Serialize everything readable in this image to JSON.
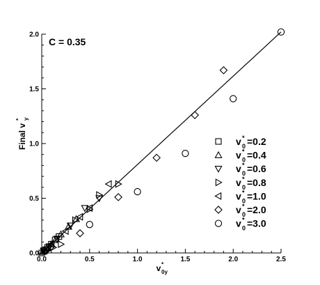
{
  "chart_data": {
    "type": "scatter",
    "annotation": "C = 0.35",
    "xlabel": {
      "main": "v",
      "sup": "*",
      "sub": "0y"
    },
    "ylabel": {
      "prefix": "Final v",
      "sup": "*",
      "sub": "y"
    },
    "xlim": [
      0,
      2.5
    ],
    "ylim": [
      0,
      2.0
    ],
    "xticks": [
      "0.0",
      "0.5",
      "1.0",
      "1.5",
      "2.0",
      "2.5"
    ],
    "yticks": [
      "0.0",
      "0.5",
      "1.0",
      "1.5",
      "2.0"
    ],
    "fit_line": {
      "x": [
        0,
        2.5
      ],
      "y": [
        0,
        2.02
      ]
    },
    "series": [
      {
        "label": "v",
        "sup": "*",
        "sub": "0",
        "value_text": "=0.2",
        "marker": "square",
        "points": [
          [
            0.0,
            0.0
          ],
          [
            0.02,
            0.02
          ],
          [
            0.04,
            0.03
          ],
          [
            0.06,
            0.05
          ],
          [
            0.1,
            0.08
          ],
          [
            0.14,
            0.12
          ],
          [
            0.18,
            0.15
          ]
        ]
      },
      {
        "label": "v",
        "sup": "*",
        "sub": "0",
        "value_text": "=0.4",
        "marker": "triangle-up",
        "points": [
          [
            0.01,
            0.01
          ],
          [
            0.05,
            0.04
          ],
          [
            0.1,
            0.08
          ],
          [
            0.15,
            0.13
          ],
          [
            0.2,
            0.17
          ],
          [
            0.28,
            0.24
          ],
          [
            0.36,
            0.31
          ]
        ]
      },
      {
        "label": "v",
        "sup": "*",
        "sub": "0",
        "value_text": "=0.6",
        "marker": "triangle-down",
        "points": [
          [
            0.02,
            0.02
          ],
          [
            0.08,
            0.06
          ],
          [
            0.16,
            0.13
          ],
          [
            0.3,
            0.25
          ],
          [
            0.45,
            0.41
          ],
          [
            0.6,
            0.5
          ]
        ]
      },
      {
        "label": "v",
        "sup": "*",
        "sub": "0",
        "value_text": "=0.8",
        "marker": "triangle-right",
        "points": [
          [
            0.05,
            0.02
          ],
          [
            0.12,
            0.05
          ],
          [
            0.2,
            0.08
          ],
          [
            0.35,
            0.3
          ],
          [
            0.5,
            0.4
          ],
          [
            0.6,
            0.53
          ],
          [
            0.8,
            0.63
          ]
        ]
      },
      {
        "label": "v",
        "sup": "*",
        "sub": "0",
        "value_text": "=1.0",
        "marker": "triangle-left",
        "points": [
          [
            0.03,
            0.02
          ],
          [
            0.1,
            0.08
          ],
          [
            0.25,
            0.2
          ],
          [
            0.4,
            0.33
          ],
          [
            0.5,
            0.41
          ],
          [
            0.7,
            0.63
          ]
        ]
      },
      {
        "label": "v",
        "sup": "*",
        "sub": "0",
        "value_text": "=2.0",
        "marker": "diamond",
        "points": [
          [
            0.1,
            0.06
          ],
          [
            0.4,
            0.18
          ],
          [
            0.8,
            0.51
          ],
          [
            1.2,
            0.87
          ],
          [
            1.6,
            1.26
          ],
          [
            1.9,
            1.67
          ]
        ]
      },
      {
        "label": "v",
        "sup": "*",
        "sub": "0",
        "value_text": "=3.0",
        "marker": "circle",
        "points": [
          [
            0.5,
            0.26
          ],
          [
            1.0,
            0.56
          ],
          [
            1.5,
            0.91
          ],
          [
            2.0,
            1.41
          ],
          [
            2.5,
            2.02
          ]
        ]
      }
    ]
  }
}
